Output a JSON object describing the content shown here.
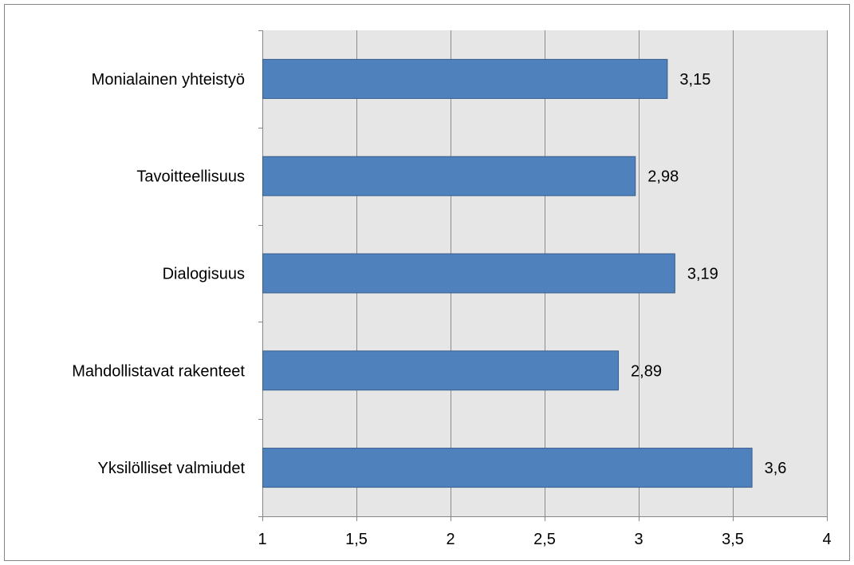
{
  "chart_data": {
    "type": "bar",
    "orientation": "horizontal",
    "categories": [
      "Monialainen yhteistyö",
      "Tavoitteellisuus",
      "Dialogisuus",
      "Mahdollistavat rakenteet",
      "Yksilölliset valmiudet"
    ],
    "values": [
      3.15,
      2.98,
      3.19,
      2.89,
      3.6
    ],
    "value_labels": [
      "3,15",
      "2,98",
      "3,19",
      "2,89",
      "3,6"
    ],
    "xlim": [
      1,
      4
    ],
    "x_ticks": [
      1,
      1.5,
      2,
      2.5,
      3,
      3.5,
      4
    ],
    "x_tick_labels": [
      "1",
      "1,5",
      "2",
      "2,5",
      "3",
      "3,5",
      "4"
    ],
    "grid": true,
    "colors": {
      "bar_fill": "#4f81bd",
      "bar_stroke": "#385d8a",
      "plot_background": "#e6e6e6",
      "gridline": "#8c8c8c",
      "axis": "#868686"
    }
  }
}
